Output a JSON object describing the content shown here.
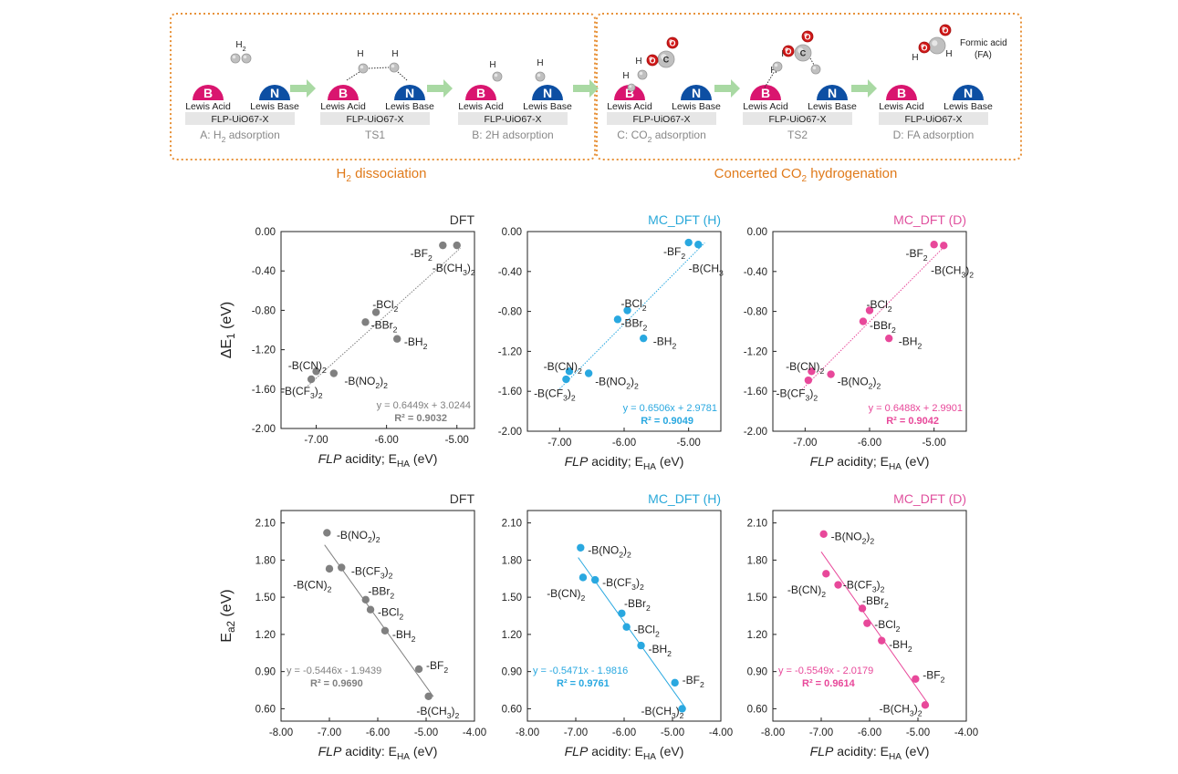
{
  "scheme": {
    "group_left_label": "H",
    "group_left_label_sub": "2",
    "group_left_label_tail": " dissociation",
    "group_right_label": "Concerted CO",
    "group_right_label_sub": "2",
    "group_right_label_tail": " hydrogenation",
    "lewis_acid": "Lewis Acid",
    "lewis_base": "Lewis Base",
    "acid_letter": "B",
    "base_letter": "N",
    "framework": "FLP-UiO67-X",
    "atom_h": "H",
    "atom_o": "O",
    "atom_c": "C",
    "h2_label": "H",
    "h2_label_sub": "2",
    "formic_acid": "Formic acid",
    "fa_abbrev": "(FA)",
    "states": [
      {
        "caption": "A: H",
        "sub": "2",
        "tail": " adsorption"
      },
      {
        "caption": "TS1",
        "sub": "",
        "tail": ""
      },
      {
        "caption": "B: 2H adsorption",
        "sub": "",
        "tail": ""
      },
      {
        "caption": "C: CO",
        "sub": "2",
        "tail": " adsorption"
      },
      {
        "caption": "TS2",
        "sub": "",
        "tail": ""
      },
      {
        "caption": "D: FA adsorption",
        "sub": "",
        "tail": ""
      }
    ],
    "colors": {
      "acid": "#d9156f",
      "base": "#0d4fa3",
      "arrow": "#a9d9a3",
      "border": "#e8923a",
      "group_text": "#e07a1a",
      "box": "#e6e6e6",
      "caption": "#888888",
      "oxygen": "#d01818",
      "atom_grey": "#c0c0c0"
    }
  },
  "chart_data": [
    {
      "type": "scatter",
      "panel": "top-left",
      "title": "DFT",
      "title_color": "#333333",
      "color": "#808080",
      "xlabel_italic": "FLP",
      "xlabel_rest": " acidity; E",
      "xlabel_sub": "HA",
      "xlabel_tail": " (eV)",
      "ylabel": "ΔE",
      "ylabel_sub": "1",
      "ylabel_tail": " (eV)",
      "xlim": [
        -7.5,
        -4.75
      ],
      "ylim": [
        -2.0,
        0.0
      ],
      "xticks": [
        -7.0,
        -6.0,
        -5.0
      ],
      "xtick_labels": [
        "-7.00",
        "-6.00",
        "-5.00"
      ],
      "yticks": [
        0.0,
        -0.4,
        -0.8,
        -1.2,
        -1.6,
        -2.0
      ],
      "ytick_labels": [
        "0.00",
        "-0.40",
        "-0.80",
        "-1.20",
        "-1.60",
        "-2.00"
      ],
      "points": [
        {
          "x": -5.2,
          "y": -0.14,
          "label": "-BF",
          "sub": "2",
          "tail": "",
          "lx": -5.35,
          "ly": -0.22,
          "anchor": "end"
        },
        {
          "x": -5.0,
          "y": -0.14,
          "label": "-B(CH",
          "sub": "3",
          "tail": ")",
          "sub2": "2",
          "lx": -5.35,
          "ly": -0.37,
          "anchor": "start"
        },
        {
          "x": -6.15,
          "y": -0.82,
          "label": "-BCl",
          "sub": "2",
          "tail": "",
          "lx": -6.2,
          "ly": -0.74,
          "anchor": "start"
        },
        {
          "x": -6.3,
          "y": -0.92,
          "label": "-BBr",
          "sub": "2",
          "tail": "",
          "lx": -6.22,
          "ly": -0.95,
          "anchor": "start"
        },
        {
          "x": -5.85,
          "y": -1.09,
          "label": "-BH",
          "sub": "2",
          "tail": "",
          "lx": -5.75,
          "ly": -1.12,
          "anchor": "start"
        },
        {
          "x": -7.0,
          "y": -1.42,
          "label": "-B(CN)",
          "sub": "2",
          "tail": "",
          "lx": -7.4,
          "ly": -1.36,
          "anchor": "start"
        },
        {
          "x": -6.75,
          "y": -1.44,
          "label": "-B(NO",
          "sub": "2",
          "tail": ")",
          "sub2": "2",
          "lx": -6.6,
          "ly": -1.52,
          "anchor": "start"
        },
        {
          "x": -7.07,
          "y": -1.5,
          "label": "-B(CF",
          "sub": "3",
          "tail": ")",
          "sub2": "2",
          "lx": -7.5,
          "ly": -1.62,
          "anchor": "start"
        }
      ],
      "fit": {
        "slope": 0.6449,
        "intercept": 3.0244,
        "x_range": [
          -7.15,
          -4.95
        ]
      },
      "equation": "y = 0.6449x + 3.0244",
      "r2": "R² = 0.9032"
    },
    {
      "type": "scatter",
      "panel": "top-middle",
      "title": "MC_DFT (H)",
      "title_color": "#29a8d9",
      "color": "#29a8e0",
      "xlabel_italic": "FLP",
      "xlabel_rest": " acidity; E",
      "xlabel_sub": "HA",
      "xlabel_tail": " (eV)",
      "ylabel": "",
      "ylabel_sub": "",
      "ylabel_tail": "",
      "xlim": [
        -7.5,
        -4.5
      ],
      "ylim": [
        -2.0,
        0.0
      ],
      "xticks": [
        -7.0,
        -6.0,
        -5.0
      ],
      "xtick_labels": [
        "-7.00",
        "-6.00",
        "-5.00"
      ],
      "yticks": [
        0.0,
        -0.4,
        -0.8,
        -1.2,
        -1.6,
        -2.0
      ],
      "ytick_labels": [
        "0.00",
        "-0.40",
        "-0.80",
        "-1.20",
        "-1.60",
        "-2.00"
      ],
      "points": [
        {
          "x": -5.0,
          "y": -0.11,
          "label": "-BF",
          "sub": "2",
          "tail": "",
          "lx": -5.05,
          "ly": -0.2,
          "anchor": "end"
        },
        {
          "x": -4.85,
          "y": -0.13,
          "label": "-B(CH",
          "sub": "3",
          "tail": "",
          "sub2": "",
          "lx": -5.0,
          "ly": -0.37,
          "anchor": "start"
        },
        {
          "x": -5.95,
          "y": -0.79,
          "label": "-BCl",
          "sub": "2",
          "tail": "",
          "lx": -6.05,
          "ly": -0.72,
          "anchor": "start"
        },
        {
          "x": -6.1,
          "y": -0.88,
          "label": "-BBr",
          "sub": "2",
          "tail": "",
          "lx": -6.05,
          "ly": -0.92,
          "anchor": "start"
        },
        {
          "x": -5.7,
          "y": -1.07,
          "label": "-BH",
          "sub": "2",
          "tail": "",
          "lx": -5.55,
          "ly": -1.1,
          "anchor": "start"
        },
        {
          "x": -6.85,
          "y": -1.4,
          "label": "-B(CN)",
          "sub": "2",
          "tail": "",
          "lx": -7.25,
          "ly": -1.35,
          "anchor": "start"
        },
        {
          "x": -6.55,
          "y": -1.42,
          "label": "-B(NO",
          "sub": "2",
          "tail": ")",
          "sub2": "2",
          "lx": -6.45,
          "ly": -1.5,
          "anchor": "start"
        },
        {
          "x": -6.9,
          "y": -1.48,
          "label": "-B(CF",
          "sub": "3",
          "tail": ")",
          "sub2": "2",
          "lx": -7.4,
          "ly": -1.62,
          "anchor": "start"
        }
      ],
      "fit": {
        "slope": 0.6506,
        "intercept": 2.9781,
        "x_range": [
          -7.0,
          -4.75
        ]
      },
      "equation": "y = 0.6506x + 2.9781",
      "r2": "R² = 0.9049"
    },
    {
      "type": "scatter",
      "panel": "top-right",
      "title": "MC_DFT (D)",
      "title_color": "#e0509e",
      "color": "#e8489a",
      "xlabel_italic": "FLP",
      "xlabel_rest": " acidity; E",
      "xlabel_sub": "HA",
      "xlabel_tail": " (eV)",
      "ylabel": "",
      "ylabel_sub": "",
      "ylabel_tail": "",
      "xlim": [
        -7.5,
        -4.5
      ],
      "ylim": [
        -2.0,
        0.0
      ],
      "xticks": [
        -7.0,
        -6.0,
        -5.0
      ],
      "xtick_labels": [
        "-7.00",
        "-6.00",
        "-5.00"
      ],
      "yticks": [
        0.0,
        -0.4,
        -0.8,
        -1.2,
        -1.6,
        -2.0
      ],
      "ytick_labels": [
        "0.00",
        "-0.40",
        "-0.80",
        "-1.20",
        "-1.60",
        "-2.00"
      ],
      "points": [
        {
          "x": -5.0,
          "y": -0.13,
          "label": "-BF",
          "sub": "2",
          "tail": "",
          "lx": -5.1,
          "ly": -0.22,
          "anchor": "end"
        },
        {
          "x": -4.85,
          "y": -0.14,
          "label": "-B(CH",
          "sub": "3",
          "tail": ")",
          "sub2": "2",
          "lx": -5.05,
          "ly": -0.39,
          "anchor": "start"
        },
        {
          "x": -6.0,
          "y": -0.79,
          "label": "-BCl",
          "sub": "2",
          "tail": "",
          "lx": -6.05,
          "ly": -0.73,
          "anchor": "start"
        },
        {
          "x": -6.1,
          "y": -0.9,
          "label": "-BBr",
          "sub": "2",
          "tail": "",
          "lx": -6.0,
          "ly": -0.94,
          "anchor": "start"
        },
        {
          "x": -5.7,
          "y": -1.07,
          "label": "-BH",
          "sub": "2",
          "tail": "",
          "lx": -5.55,
          "ly": -1.1,
          "anchor": "start"
        },
        {
          "x": -6.9,
          "y": -1.4,
          "label": "-B(CN)",
          "sub": "2",
          "tail": "",
          "lx": -7.3,
          "ly": -1.35,
          "anchor": "start"
        },
        {
          "x": -6.6,
          "y": -1.43,
          "label": "-B(NO",
          "sub": "2",
          "tail": ")",
          "sub2": "2",
          "lx": -6.5,
          "ly": -1.5,
          "anchor": "start"
        },
        {
          "x": -6.95,
          "y": -1.49,
          "label": "-B(CF",
          "sub": "3",
          "tail": ")",
          "sub2": "2",
          "lx": -7.45,
          "ly": -1.62,
          "anchor": "start"
        }
      ],
      "fit": {
        "slope": 0.6488,
        "intercept": 2.9901,
        "x_range": [
          -7.05,
          -4.8
        ]
      },
      "equation": "y = 0.6488x + 2.9901",
      "r2": "R² = 0.9042"
    },
    {
      "type": "scatter",
      "panel": "bottom-left",
      "title": "DFT",
      "title_color": "#333333",
      "color": "#808080",
      "xlabel_italic": "FLP",
      "xlabel_rest": " acidity: E",
      "xlabel_sub": "HA",
      "xlabel_tail": " (eV)",
      "ylabel": "E",
      "ylabel_sub": "a2",
      "ylabel_tail": " (eV)",
      "xlim": [
        -8.0,
        -4.0
      ],
      "ylim": [
        0.5,
        2.2
      ],
      "xticks": [
        -8.0,
        -7.0,
        -6.0,
        -5.0,
        -4.0
      ],
      "xtick_labels": [
        "-8.00",
        "-7.00",
        "-6.00",
        "-5.00",
        "-4.00"
      ],
      "yticks": [
        2.1,
        1.8,
        1.5,
        1.2,
        0.9,
        0.6
      ],
      "ytick_labels": [
        "2.10",
        "1.80",
        "1.50",
        "1.20",
        "0.90",
        "0.60"
      ],
      "points": [
        {
          "x": -7.05,
          "y": 2.02,
          "label": "-B(NO",
          "sub": "2",
          "tail": ")",
          "sub2": "2",
          "lx": -6.85,
          "ly": 2.0,
          "anchor": "start"
        },
        {
          "x": -6.75,
          "y": 1.74,
          "label": "-B(CF",
          "sub": "3",
          "tail": ")",
          "sub2": "2",
          "lx": -6.55,
          "ly": 1.71,
          "anchor": "start"
        },
        {
          "x": -7.0,
          "y": 1.73,
          "label": "-B(CN)",
          "sub": "2",
          "tail": "",
          "lx": -7.75,
          "ly": 1.6,
          "anchor": "start"
        },
        {
          "x": -6.25,
          "y": 1.48,
          "label": "-BBr",
          "sub": "2",
          "tail": "",
          "lx": -6.2,
          "ly": 1.55,
          "anchor": "start"
        },
        {
          "x": -6.15,
          "y": 1.4,
          "label": "-BCl",
          "sub": "2",
          "tail": "",
          "lx": -6.0,
          "ly": 1.38,
          "anchor": "start"
        },
        {
          "x": -5.85,
          "y": 1.23,
          "label": "-BH",
          "sub": "2",
          "tail": "",
          "lx": -5.7,
          "ly": 1.2,
          "anchor": "start"
        },
        {
          "x": -5.15,
          "y": 0.92,
          "label": "-BF",
          "sub": "2",
          "tail": "",
          "lx": -5.0,
          "ly": 0.95,
          "anchor": "start"
        },
        {
          "x": -4.95,
          "y": 0.7,
          "label": "-B(CH",
          "sub": "3",
          "tail": ")",
          "sub2": "2",
          "lx": -5.2,
          "ly": 0.58,
          "anchor": "start"
        }
      ],
      "fit": {
        "slope": -0.5446,
        "intercept": -1.9439,
        "x_range": [
          -7.1,
          -4.85
        ]
      },
      "equation": "y = -0.5446x - 1.9439",
      "r2": "R² = 0.9690"
    },
    {
      "type": "scatter",
      "panel": "bottom-middle",
      "title": "MC_DFT (H)",
      "title_color": "#29a8d9",
      "color": "#29a8e0",
      "xlabel_italic": "FLP",
      "xlabel_rest": " acidity: E",
      "xlabel_sub": "HA",
      "xlabel_tail": " (eV)",
      "ylabel": "",
      "ylabel_sub": "",
      "ylabel_tail": "",
      "xlim": [
        -8.0,
        -4.0
      ],
      "ylim": [
        0.5,
        2.2
      ],
      "xticks": [
        -8.0,
        -7.0,
        -6.0,
        -5.0,
        -4.0
      ],
      "xtick_labels": [
        "-8.00",
        "-7.00",
        "-6.00",
        "-5.00",
        "-4.00"
      ],
      "yticks": [
        2.1,
        1.8,
        1.5,
        1.2,
        0.9,
        0.6
      ],
      "ytick_labels": [
        "2.10",
        "1.80",
        "1.50",
        "1.20",
        "0.90",
        "0.60"
      ],
      "points": [
        {
          "x": -6.9,
          "y": 1.9,
          "label": "-B(NO",
          "sub": "2",
          "tail": ")",
          "sub2": "2",
          "lx": -6.75,
          "ly": 1.88,
          "anchor": "start"
        },
        {
          "x": -6.6,
          "y": 1.64,
          "label": "-B(CF",
          "sub": "3",
          "tail": ")",
          "sub2": "2",
          "lx": -6.45,
          "ly": 1.62,
          "anchor": "start"
        },
        {
          "x": -6.85,
          "y": 1.66,
          "label": "-B(CN)",
          "sub": "2",
          "tail": "",
          "lx": -7.6,
          "ly": 1.53,
          "anchor": "start"
        },
        {
          "x": -6.05,
          "y": 1.37,
          "label": "-BBr",
          "sub": "2",
          "tail": "",
          "lx": -6.0,
          "ly": 1.45,
          "anchor": "start"
        },
        {
          "x": -5.95,
          "y": 1.26,
          "label": "-BCl",
          "sub": "2",
          "tail": "",
          "lx": -5.8,
          "ly": 1.24,
          "anchor": "start"
        },
        {
          "x": -5.65,
          "y": 1.11,
          "label": "-BH",
          "sub": "2",
          "tail": "",
          "lx": -5.5,
          "ly": 1.08,
          "anchor": "start"
        },
        {
          "x": -4.95,
          "y": 0.81,
          "label": "-BF",
          "sub": "2",
          "tail": "",
          "lx": -4.8,
          "ly": 0.83,
          "anchor": "start"
        },
        {
          "x": -4.8,
          "y": 0.6,
          "label": "-B(CH",
          "sub": "3",
          "tail": ")",
          "sub2": "2",
          "lx": -5.65,
          "ly": 0.58,
          "anchor": "start"
        }
      ],
      "fit": {
        "slope": -0.5471,
        "intercept": -1.9816,
        "x_range": [
          -6.95,
          -4.75
        ]
      },
      "equation": "y = -0.5471x - 1.9816",
      "r2": "R² = 0.9761"
    },
    {
      "type": "scatter",
      "panel": "bottom-right",
      "title": "MC_DFT (D)",
      "title_color": "#e0509e",
      "color": "#e8489a",
      "xlabel_italic": "FLP",
      "xlabel_rest": " acidity: E",
      "xlabel_sub": "HA",
      "xlabel_tail": " (eV)",
      "ylabel": "",
      "ylabel_sub": "",
      "ylabel_tail": "",
      "xlim": [
        -8.0,
        -4.0
      ],
      "ylim": [
        0.5,
        2.2
      ],
      "xticks": [
        -8.0,
        -7.0,
        -6.0,
        -5.0,
        -4.0
      ],
      "xtick_labels": [
        "-8.00",
        "-7.00",
        "-6.00",
        "-5.00",
        "-4.00"
      ],
      "yticks": [
        2.1,
        1.8,
        1.5,
        1.2,
        0.9,
        0.6
      ],
      "ytick_labels": [
        "2.10",
        "1.80",
        "1.50",
        "1.20",
        "0.90",
        "0.60"
      ],
      "points": [
        {
          "x": -6.95,
          "y": 2.01,
          "label": "-B(NO",
          "sub": "2",
          "tail": ")",
          "sub2": "2",
          "lx": -6.8,
          "ly": 1.99,
          "anchor": "start"
        },
        {
          "x": -6.65,
          "y": 1.6,
          "label": "-B(CF",
          "sub": "3",
          "tail": ")",
          "sub2": "2",
          "lx": -6.55,
          "ly": 1.6,
          "anchor": "start"
        },
        {
          "x": -6.9,
          "y": 1.69,
          "label": "-B(CN)",
          "sub": "2",
          "tail": "",
          "lx": -7.7,
          "ly": 1.56,
          "anchor": "start"
        },
        {
          "x": -6.15,
          "y": 1.41,
          "label": "-BBr",
          "sub": "2",
          "tail": "",
          "lx": -6.15,
          "ly": 1.47,
          "anchor": "start"
        },
        {
          "x": -6.05,
          "y": 1.29,
          "label": "-BCl",
          "sub": "2",
          "tail": "",
          "lx": -5.9,
          "ly": 1.28,
          "anchor": "start"
        },
        {
          "x": -5.75,
          "y": 1.15,
          "label": "-BH",
          "sub": "2",
          "tail": "",
          "lx": -5.6,
          "ly": 1.12,
          "anchor": "start"
        },
        {
          "x": -5.05,
          "y": 0.84,
          "label": "-BF",
          "sub": "2",
          "tail": "",
          "lx": -4.9,
          "ly": 0.87,
          "anchor": "start"
        },
        {
          "x": -4.85,
          "y": 0.63,
          "label": "-B(CH",
          "sub": "3",
          "tail": ")",
          "sub2": "2",
          "lx": -5.8,
          "ly": 0.6,
          "anchor": "start"
        }
      ],
      "fit": {
        "slope": -0.5549,
        "intercept": -2.0179,
        "x_range": [
          -7.0,
          -4.8
        ]
      },
      "equation": "y = -0.5549x - 2.0179",
      "r2": "R² = 0.9614"
    }
  ]
}
